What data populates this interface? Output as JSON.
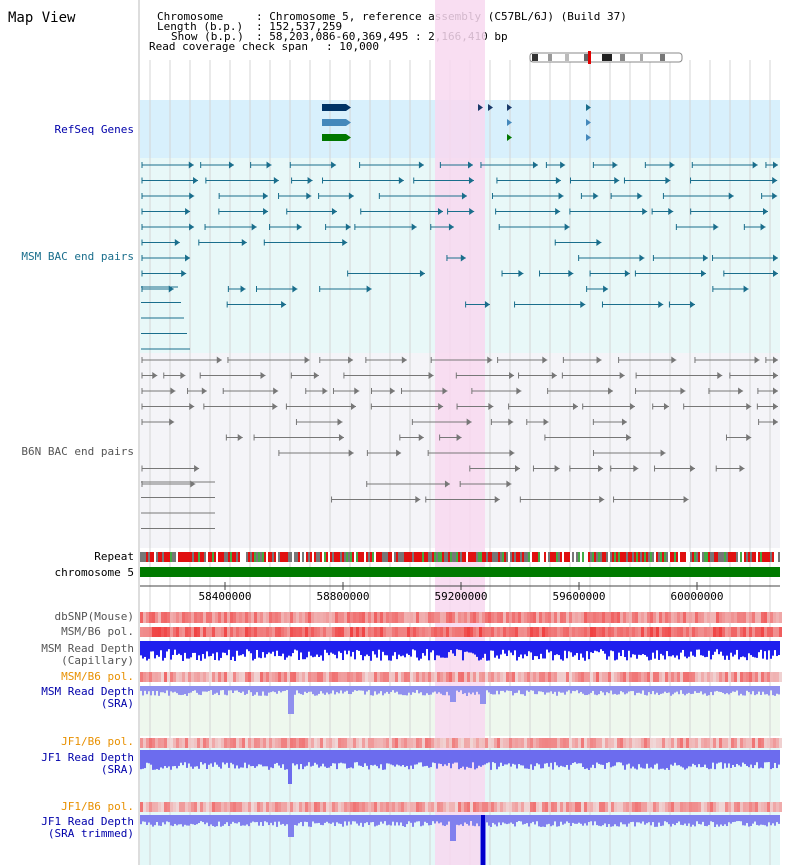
{
  "header": {
    "title": "Map View",
    "chromosome_label": "Chromosome",
    "chromosome_value": ": Chromosome 5, reference assembly (C57BL/6J) (Build 37)",
    "length_label": "Length (b.p.)",
    "length_value": ": 152,537,259",
    "show_label": "Show (b.p.)",
    "show_value": ": 58,203,086-60,369,495 : 2,166,410 bp",
    "span_label": "Read coverage check span",
    "span_value": ": 10,000"
  },
  "tracks": {
    "refseq": "RefSeq Genes",
    "msm_bac": "MSM BAC end pairs",
    "b6n_bac": "B6N BAC end pairs",
    "repeat": "Repeat",
    "chromosome": "chromosome 5",
    "dbsnp": "dbSNP(Mouse)",
    "msm_b6_pol": "MSM/B6 pol.",
    "msm_read_cap_1": "MSM Read Depth",
    "msm_read_cap_2": "(Capillary)",
    "msm_b6_pol2": "MSM/B6 pol.",
    "msm_read_sra_1": "MSM Read Depth",
    "msm_read_sra_2": "(SRA)",
    "jf1_b6_pol": "JF1/B6 pol.",
    "jf1_read_sra_1": "JF1 Read Depth",
    "jf1_read_sra_2": "(SRA)",
    "jf1_b6_pol2": "JF1/B6 pol.",
    "jf1_read_trim_1": "JF1 Read Depth",
    "jf1_read_trim_2": "(SRA trimmed)"
  },
  "axis": {
    "ticks": [
      "58400000",
      "58800000",
      "59200000",
      "59600000",
      "60000000"
    ]
  },
  "colors": {
    "highlight": "#f8d8f0",
    "refseq_band": "#d8f0fc",
    "bac_band": "#e8f8f8",
    "msm_bac": "#1a6e8c",
    "b6n_bac": "#777777",
    "chromosome_green": "#007a00",
    "label_blue": "#0000aa",
    "label_orange": "#e89000",
    "label_gray": "#555555",
    "label_teal": "#1a6e8c"
  }
}
